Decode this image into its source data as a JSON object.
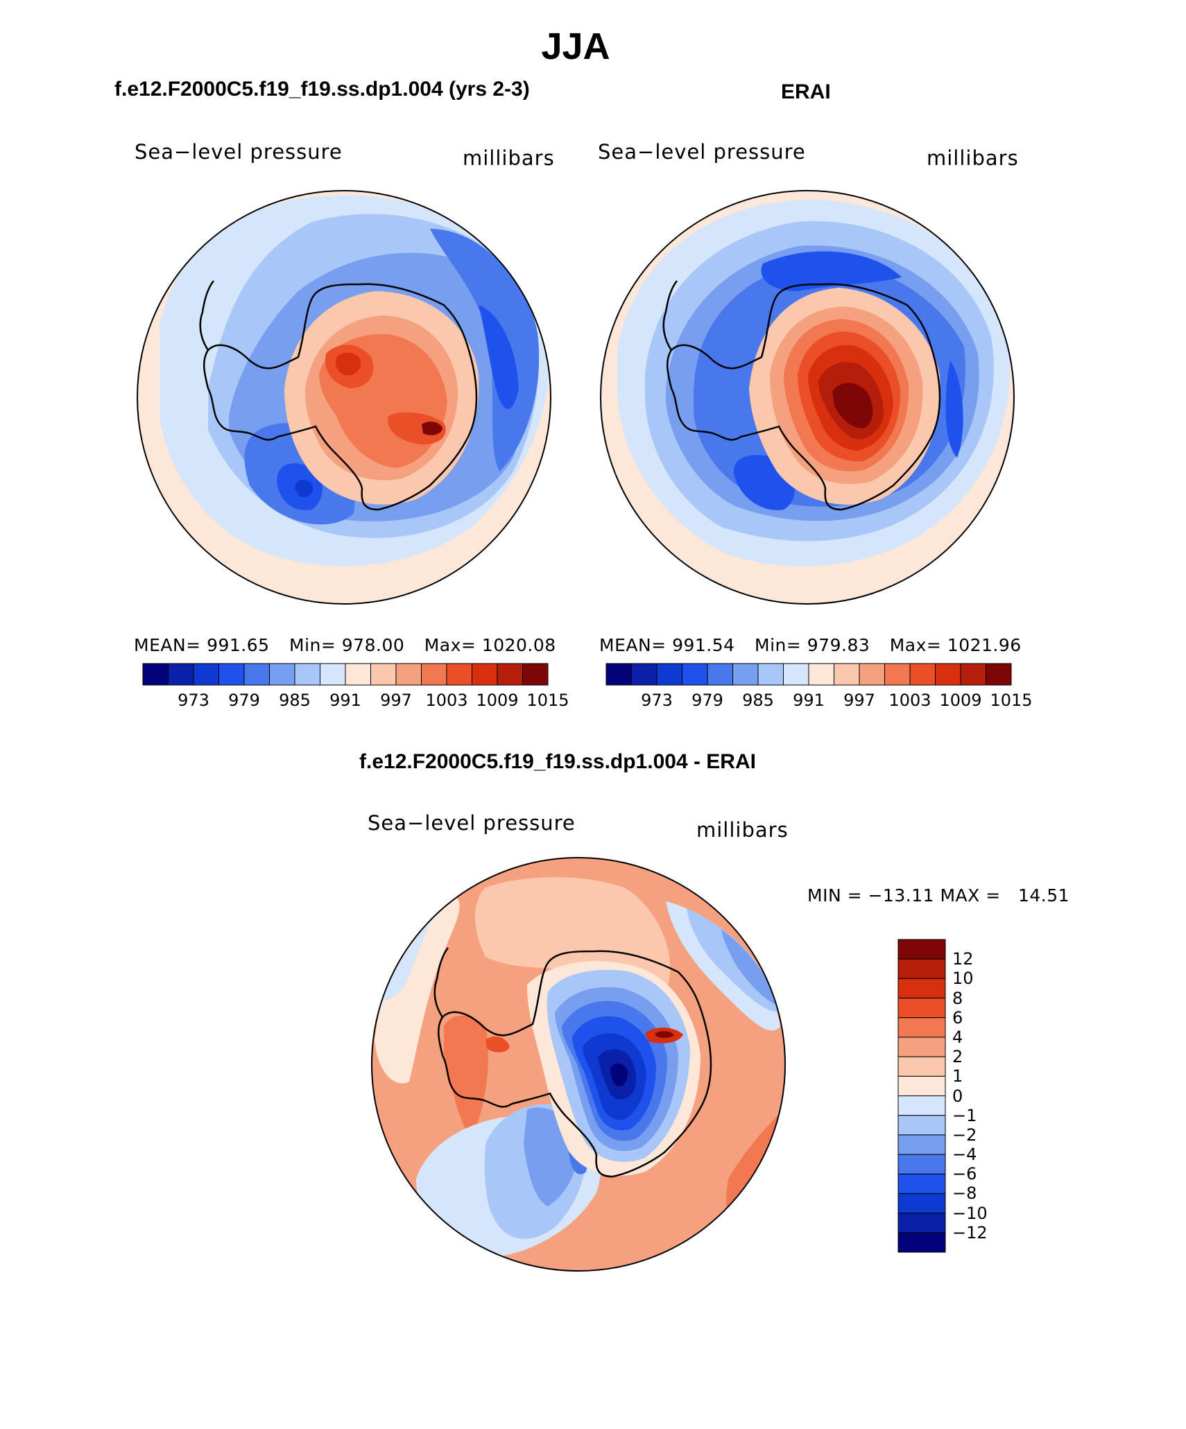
{
  "main_title": "JJA",
  "panels": [
    {
      "subtitle": "f.e12.F2000C5.f19_f19.ss.dp1.004 (yrs 2-3)",
      "variable": "Sea−level pressure",
      "units": "millibars",
      "stats": {
        "mean_label": "MEAN=",
        "mean": "991.65",
        "min_label": "Min=",
        "min": "978.00",
        "max_label": "Max=",
        "max": "1020.08"
      }
    },
    {
      "subtitle": "ERAI",
      "variable": "Sea−level pressure",
      "units": "millibars",
      "stats": {
        "mean_label": "MEAN=",
        "mean": "991.54",
        "min_label": "Min=",
        "min": "979.83",
        "max_label": "Max=",
        "max": "1021.96"
      }
    }
  ],
  "top_colorbar": {
    "labels": [
      "973",
      "979",
      "985",
      "991",
      "997",
      "1003",
      "1009",
      "1015"
    ],
    "colors": [
      "#02027a",
      "#0821a8",
      "#0f3ad2",
      "#1f52ed",
      "#4878ec",
      "#789fef",
      "#a8c6f7",
      "#d5e6fb",
      "#fde7d8",
      "#fbc8ae",
      "#f5a07e",
      "#f27852",
      "#ea4f28",
      "#d8300e",
      "#b51e0a",
      "#7e0606"
    ]
  },
  "diff_panel": {
    "subtitle": "f.e12.F2000C5.f19_f19.ss.dp1.004 - ERAI",
    "variable": "Sea−level pressure",
    "units": "millibars",
    "minmax": "MIN = −13.11 MAX =   14.51",
    "colorbar_labels": [
      "12",
      "10",
      "8",
      "6",
      "4",
      "2",
      "1",
      "0",
      "−1",
      "−2",
      "−4",
      "−6",
      "−8",
      "−10",
      "−12"
    ],
    "colorbar_colors": [
      "#7e0606",
      "#b51e0a",
      "#d8300e",
      "#ea4f28",
      "#f27852",
      "#f5a07e",
      "#fbc8ae",
      "#fde7d8",
      "#d5e6fb",
      "#a8c6f7",
      "#789fef",
      "#4878ec",
      "#1f52ed",
      "#0f3ad2",
      "#0821a8",
      "#02027a"
    ]
  },
  "map_colors": {
    "ocean_light": "#fde7d8",
    "pale_blue": "#d5e6fb",
    "light_blue": "#a8c6f7",
    "mid_blue": "#789fef",
    "blue": "#4878ec",
    "deep_blue": "#1f52ed",
    "navy": "#0f3ad2",
    "peach": "#fbc8ae",
    "salmon": "#f5a07e",
    "orange": "#f27852",
    "red_orange": "#ea4f28",
    "red": "#d8300e",
    "dark_red": "#b51e0a",
    "maroon": "#7e0606"
  }
}
